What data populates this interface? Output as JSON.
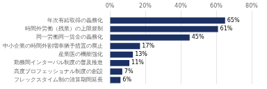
{
  "chart_data": {
    "type": "bar",
    "orientation": "horizontal",
    "categories": [
      "フレックスタイム制の清算期間延長",
      "高度プロフェッショナル制度の創設",
      "勤務間インターバル制度の普及推進",
      "産業医の機能強化",
      "中小企業の時間外割増率猶予措置の廃止",
      "同一労働同一賃金の義務化",
      "時間外労働（残業）の上限規制",
      "年次有給取得の義務化"
    ],
    "values": [
      6,
      7,
      11,
      13,
      17,
      45,
      61,
      65
    ],
    "value_labels": [
      "6%",
      "7%",
      "11%",
      "13%",
      "17%",
      "45%",
      "61%",
      "65%"
    ],
    "data_labels": true,
    "color": "#1c3163",
    "xlim": [
      0,
      80
    ],
    "xticks": [
      {
        "value": 0,
        "label": "0%"
      },
      {
        "value": 20,
        "label": "20%"
      },
      {
        "value": 40,
        "label": "40%"
      },
      {
        "value": 60,
        "label": "60%"
      },
      {
        "value": 80,
        "label": "80%"
      }
    ],
    "grid": true
  }
}
